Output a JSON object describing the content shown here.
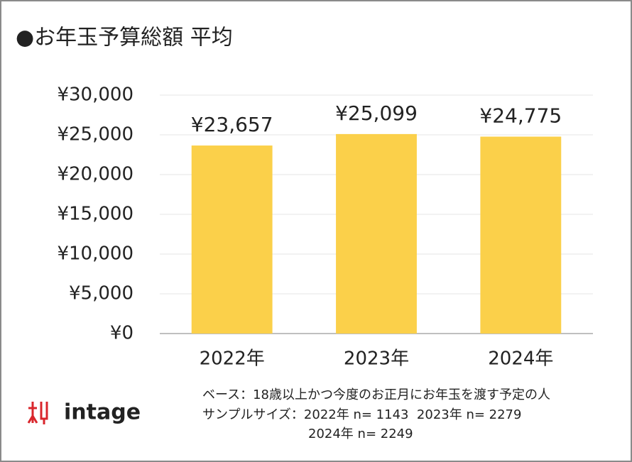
{
  "chart_data": {
    "type": "bar",
    "title": "●お年玉予算総額 平均",
    "categories": [
      "2022年",
      "2023年",
      "2024年"
    ],
    "values": [
      23657,
      25099,
      24775
    ],
    "value_labels": [
      "¥23,657",
      "¥25,099",
      "¥24,775"
    ],
    "color": "#fbd04a",
    "ylim": [
      0,
      30000
    ],
    "yticks": [
      {
        "value": 0,
        "label": "¥0"
      },
      {
        "value": 5000,
        "label": "¥5,000"
      },
      {
        "value": 10000,
        "label": "¥10,000"
      },
      {
        "value": 15000,
        "label": "¥15,000"
      },
      {
        "value": 20000,
        "label": "¥20,000"
      },
      {
        "value": 25000,
        "label": "¥25,000"
      },
      {
        "value": 30000,
        "label": "¥30,000"
      }
    ],
    "grid": true,
    "notes": [
      "ベース：18歳以上かつ今度のお正月にお年玉を渡す予定の人",
      "サンプルサイズ：2022年 n= 1143  2023年 n= 2279",
      "2024年 n= 2249"
    ],
    "logo": "intage"
  }
}
